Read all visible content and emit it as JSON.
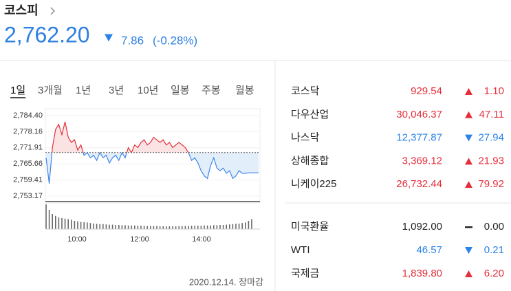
{
  "header": {
    "title": "코스피",
    "value": "2,762.20",
    "change": "7.86",
    "change_pct": "(-0.28%)",
    "direction": "down"
  },
  "tabs": [
    "1일",
    "3개월",
    "1년",
    "3년",
    "10년",
    "일봉",
    "주봉",
    "월봉"
  ],
  "active_tab": 0,
  "chart": {
    "type": "line",
    "ylim": [
      2753.17,
      2784.4
    ],
    "yticks": [
      {
        "value": 2784.4,
        "label": "2,784.40"
      },
      {
        "value": 2778.16,
        "label": "2,778.16"
      },
      {
        "value": 2771.91,
        "label": "2,771.91"
      },
      {
        "value": 2765.66,
        "label": "2,765.66"
      },
      {
        "value": 2759.41,
        "label": "2,759.41"
      },
      {
        "value": 2753.17,
        "label": "2,753.17"
      }
    ],
    "xticks": [
      "10:00",
      "12:00",
      "14:00"
    ],
    "reference": 2770.06,
    "up_color": "#e0313a",
    "down_color": "#3d86e8",
    "values": [
      2768,
      2758,
      2772,
      2779,
      2781,
      2777,
      2782,
      2776,
      2774,
      2775,
      2771,
      2773,
      2769,
      2770,
      2768,
      2769,
      2767,
      2770,
      2768,
      2769,
      2766,
      2768,
      2769,
      2767,
      2770,
      2768,
      2772,
      2770,
      2773,
      2772,
      2774,
      2775,
      2773,
      2774,
      2776,
      2775,
      2774,
      2775,
      2773,
      2774,
      2772,
      2773,
      2774,
      2773,
      2772,
      2770,
      2767,
      2768,
      2766,
      2763,
      2761,
      2760,
      2765,
      2768,
      2764,
      2763,
      2764,
      2762,
      2763,
      2760,
      2761,
      2763,
      2762,
      2762,
      2762.2,
      2762.2
    ],
    "volume": [
      90,
      70,
      55,
      48,
      42,
      40,
      38,
      36,
      34,
      30,
      28,
      26,
      25,
      24,
      22,
      20,
      19,
      18,
      18,
      17,
      16,
      16,
      15,
      15,
      14,
      14,
      13,
      13,
      13,
      12,
      12,
      12,
      11,
      11,
      11,
      11,
      10,
      10,
      10,
      10,
      10,
      10,
      11,
      11,
      11,
      11,
      12,
      12,
      12,
      12,
      13,
      13,
      13,
      14,
      14,
      15,
      15,
      16,
      17,
      18,
      19,
      20,
      22,
      24,
      30,
      36
    ]
  },
  "footnote": "2020.12.14. 장마감",
  "indices": [
    {
      "name": "코스닥",
      "value": "929.54",
      "change": "1.10",
      "direction": "up"
    },
    {
      "name": "다우산업",
      "value": "30,046.37",
      "change": "47.11",
      "direction": "up"
    },
    {
      "name": "나스닥",
      "value": "12,377.87",
      "change": "27.94",
      "direction": "down"
    },
    {
      "name": "상해종합",
      "value": "3,369.12",
      "change": "21.93",
      "direction": "up"
    },
    {
      "name": "니케이225",
      "value": "26,732.44",
      "change": "79.92",
      "direction": "up"
    }
  ],
  "others": [
    {
      "name": "미국환율",
      "value": "1,092.00",
      "change": "0.00",
      "direction": "flat"
    },
    {
      "name": "WTI",
      "value": "46.57",
      "change": "0.21",
      "direction": "down"
    },
    {
      "name": "국제금",
      "value": "1,839.80",
      "change": "6.20",
      "direction": "up"
    }
  ]
}
